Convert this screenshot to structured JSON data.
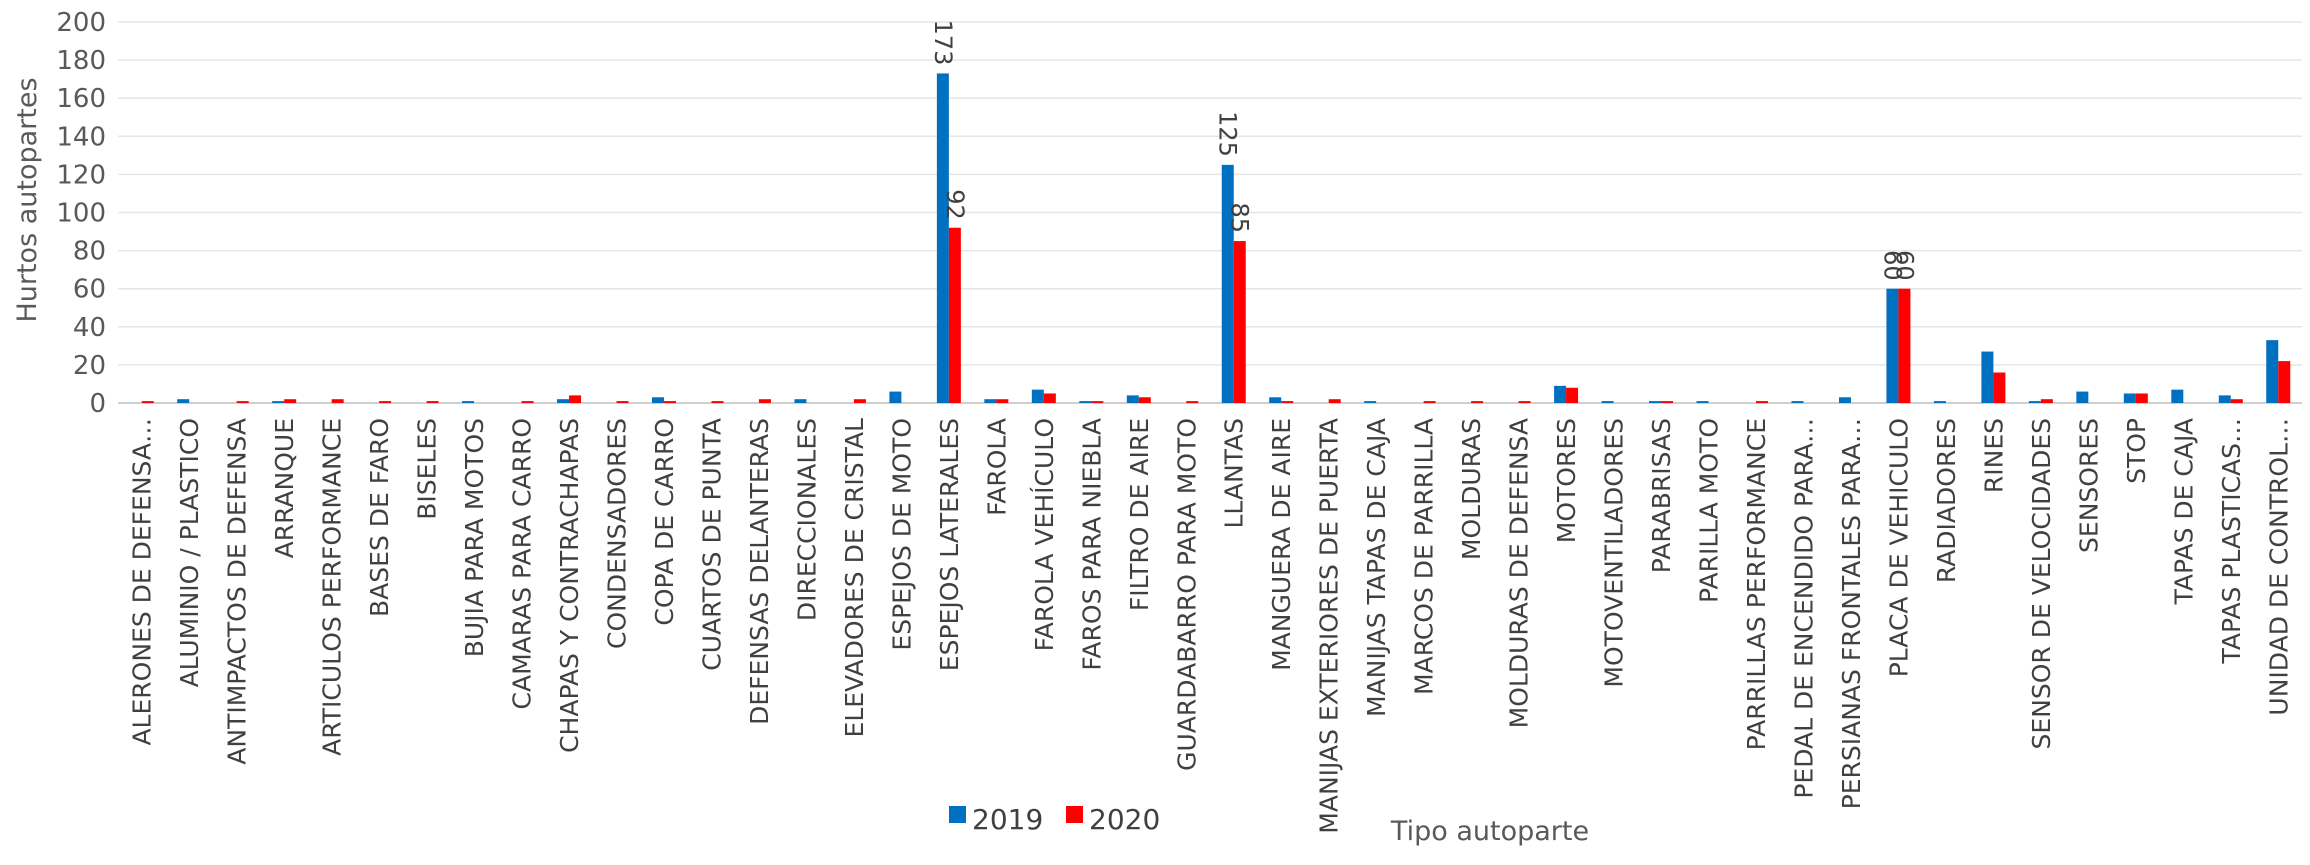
{
  "chart_data": {
    "type": "bar",
    "xlabel": "Tipo autoparte",
    "ylabel": "Hurtos autopartes",
    "ylim": [
      0,
      200
    ],
    "yticks": [
      0,
      20,
      40,
      60,
      80,
      100,
      120,
      140,
      160,
      180,
      200
    ],
    "grid": true,
    "legend_position": "bottom",
    "colors": {
      "2019": "#0070c0",
      "2020": "#ff0000"
    },
    "categories": [
      "ALERONES DE DEFENSA…",
      "ALUMINIO / PLASTICO",
      "ANTIMPACTOS DE DEFENSA",
      "ARRANQUE",
      "ARTICULOS PERFORMANCE",
      "BASES DE FARO",
      "BISELES",
      "BUJIA PARA MOTOS",
      "CAMARAS PARA CARRO",
      "CHAPAS Y CONTRACHAPAS",
      "CONDENSADORES",
      "COPA DE CARRO",
      "CUARTOS DE PUNTA",
      "DEFENSAS DELANTERAS",
      "DIRECCIONALES",
      "ELEVADORES DE CRISTAL",
      "ESPEJOS DE MOTO",
      "ESPEJOS LATERALES",
      "FAROLA",
      "FAROLA VEHÍCULO",
      "FAROS PARA NIEBLA",
      "FILTRO DE AIRE",
      "GUARDABARRO PARA MOTO",
      "LLANTAS",
      "MANGUERA DE AIRE",
      "MANIJAS EXTERIORES DE PUERTA",
      "MANIJAS TAPAS DE CAJA",
      "MARCOS DE PARRILLA",
      "MOLDURAS",
      "MOLDURAS DE DEFENSA",
      "MOTORES",
      "MOTOVENTILADORES",
      "PARABRISAS",
      "PARILLA MOTO",
      "PARRILLAS PERFORMANCE",
      "PEDAL DE ENCENDIDO PARA…",
      "PERSIANAS FRONTALES PARA…",
      "PLACA DE VEHICULO",
      "RADIADORES",
      "RINES",
      "SENSOR DE VELOCIDADES",
      "SENSORES",
      "STOP",
      "TAPAS DE CAJA",
      "TAPAS PLASTICAS…",
      "UNIDAD DE CONTROL…"
    ],
    "series": [
      {
        "name": "2019",
        "values": [
          0,
          2,
          0,
          1,
          0,
          0,
          0,
          1,
          0,
          2,
          0,
          3,
          0,
          0,
          2,
          0,
          6,
          173,
          2,
          7,
          1,
          4,
          0,
          125,
          3,
          0,
          1,
          0,
          0,
          0,
          9,
          1,
          1,
          1,
          0,
          1,
          3,
          60,
          1,
          27,
          1,
          6,
          5,
          7,
          4,
          33
        ]
      },
      {
        "name": "2020",
        "values": [
          1,
          0,
          1,
          2,
          2,
          1,
          1,
          0,
          1,
          4,
          1,
          1,
          1,
          2,
          0,
          2,
          0,
          92,
          2,
          5,
          1,
          3,
          1,
          85,
          1,
          2,
          0,
          1,
          1,
          1,
          8,
          0,
          1,
          0,
          1,
          0,
          0,
          60,
          0,
          16,
          2,
          0,
          5,
          0,
          2,
          22
        ]
      }
    ],
    "data_labels": [
      {
        "category": "ESPEJOS LATERALES",
        "series": "2019",
        "text": "173"
      },
      {
        "category": "ESPEJOS LATERALES",
        "series": "2020",
        "text": "92"
      },
      {
        "category": "LLANTAS",
        "series": "2019",
        "text": "125"
      },
      {
        "category": "LLANTAS",
        "series": "2020",
        "text": "85"
      },
      {
        "category": "PLACA DE VEHICULO",
        "series": "2019",
        "text": "60"
      },
      {
        "category": "PLACA DE VEHICULO",
        "series": "2020",
        "text": "60"
      }
    ]
  }
}
